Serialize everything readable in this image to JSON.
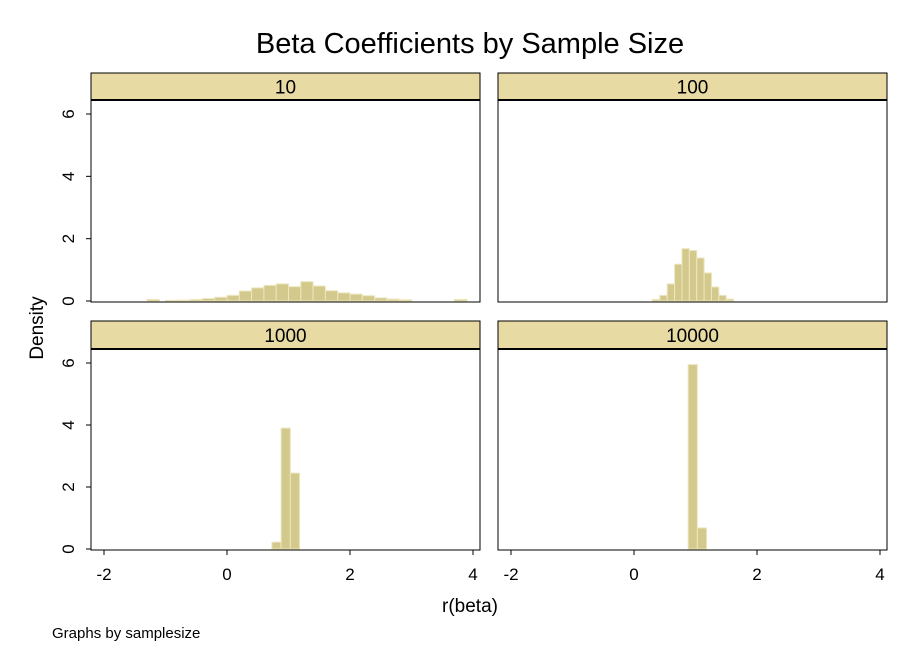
{
  "chart_data": {
    "type": "bar",
    "title": "Beta Coefficients by Sample Size",
    "xlabel": "r(beta)",
    "ylabel": "Density",
    "note": "Graphs by samplesize",
    "xlim": [
      -2,
      4
    ],
    "ylim": [
      0,
      6
    ],
    "xticks": [
      "-2",
      "0",
      "2",
      "4"
    ],
    "yticks": [
      "0",
      "2",
      "4",
      "6"
    ],
    "grid": false,
    "colors": {
      "bar_fill": "#D4C98C",
      "bar_stroke": "#EDE6BE",
      "strip_fill": "#E8DAA3",
      "frame": "#000000",
      "background": "#FFFFFF"
    },
    "panels": [
      {
        "label": "10",
        "bin_width": 0.2,
        "bins": [
          [
            -1.3,
            0.05
          ],
          [
            -1.0,
            0.02
          ],
          [
            -0.8,
            0.03
          ],
          [
            -0.6,
            0.05
          ],
          [
            -0.4,
            0.08
          ],
          [
            -0.2,
            0.12
          ],
          [
            0.0,
            0.18
          ],
          [
            0.2,
            0.32
          ],
          [
            0.4,
            0.42
          ],
          [
            0.6,
            0.5
          ],
          [
            0.8,
            0.55
          ],
          [
            1.0,
            0.46
          ],
          [
            1.2,
            0.62
          ],
          [
            1.4,
            0.48
          ],
          [
            1.6,
            0.33
          ],
          [
            1.8,
            0.26
          ],
          [
            2.0,
            0.22
          ],
          [
            2.2,
            0.17
          ],
          [
            2.4,
            0.1
          ],
          [
            2.6,
            0.06
          ],
          [
            2.8,
            0.04
          ],
          [
            3.7,
            0.05
          ]
        ]
      },
      {
        "label": "100",
        "bin_width": 0.12,
        "bins": [
          [
            0.3,
            0.05
          ],
          [
            0.42,
            0.18
          ],
          [
            0.54,
            0.55
          ],
          [
            0.66,
            1.18
          ],
          [
            0.78,
            1.68
          ],
          [
            0.9,
            1.62
          ],
          [
            1.02,
            1.38
          ],
          [
            1.14,
            0.9
          ],
          [
            1.26,
            0.45
          ],
          [
            1.38,
            0.18
          ],
          [
            1.5,
            0.06
          ]
        ]
      },
      {
        "label": "1000",
        "bin_width": 0.15,
        "bins": [
          [
            0.73,
            0.22
          ],
          [
            0.88,
            3.9
          ],
          [
            1.03,
            2.45
          ]
        ]
      },
      {
        "label": "10000",
        "bin_width": 0.15,
        "bins": [
          [
            0.88,
            5.95
          ],
          [
            1.03,
            0.68
          ]
        ]
      }
    ]
  }
}
